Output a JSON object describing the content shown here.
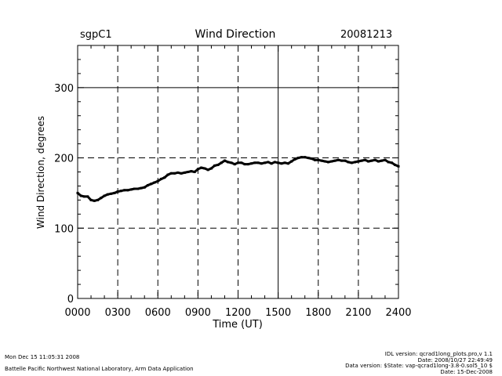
{
  "header": {
    "station": "sgpC1",
    "title": "Wind Direction",
    "date": "20081213"
  },
  "footer": {
    "left_line1": "Mon Dec 15 11:05:31 2008",
    "left_line2": "Battelle Pacific Northwest National Laboratory, Arm Data Application",
    "right_line1": "IDL version: qcrad1long_plots.pro,v 1.1",
    "right_line2": "Date: 2008/10/27 22:49:49",
    "right_line3": "Data version: $State: vap-qcrad1long-3.8-0.sol5_10 $",
    "right_line4": "Date: 15-Dec-2008"
  },
  "chart_data": {
    "type": "scatter",
    "title": "Wind Direction",
    "xlabel": "Time (UT)",
    "ylabel": "Wind Direction, degrees",
    "xlim": [
      0,
      2400
    ],
    "ylim": [
      0,
      360
    ],
    "x_ticks": [
      "0000",
      "0300",
      "0600",
      "0900",
      "1200",
      "1500",
      "1800",
      "2100",
      "2400"
    ],
    "y_ticks": [
      0,
      100,
      200,
      300
    ],
    "grid": "dashed vertical lines at each 3-hour tick, solid at 1500; dashed horizontal lines at 100, 200, 300",
    "series": [
      {
        "name": "Wind Direction",
        "color": "#000000",
        "x": [
          0,
          25,
          50,
          75,
          100,
          125,
          150,
          175,
          200,
          225,
          250,
          275,
          300,
          325,
          350,
          375,
          400,
          425,
          450,
          475,
          500,
          525,
          550,
          575,
          600,
          625,
          650,
          675,
          700,
          725,
          750,
          775,
          800,
          825,
          850,
          875,
          900,
          925,
          950,
          975,
          1000,
          1025,
          1050,
          1075,
          1100,
          1125,
          1150,
          1175,
          1200,
          1225,
          1250,
          1275,
          1300,
          1325,
          1350,
          1375,
          1400,
          1425,
          1450,
          1475,
          1500,
          1525,
          1550,
          1575,
          1600,
          1625,
          1650,
          1675,
          1700,
          1725,
          1750,
          1775,
          1800,
          1825,
          1850,
          1875,
          1900,
          1925,
          1950,
          1975,
          2000,
          2025,
          2050,
          2075,
          2100,
          2125,
          2150,
          2175,
          2200,
          2225,
          2250,
          2275,
          2300,
          2325,
          2350,
          2375,
          2400
        ],
        "values": [
          150,
          146,
          145,
          145,
          140,
          139,
          140,
          143,
          146,
          148,
          149,
          150,
          152,
          153,
          154,
          154,
          155,
          156,
          156,
          157,
          158,
          161,
          163,
          165,
          167,
          170,
          172,
          176,
          178,
          178,
          179,
          178,
          179,
          180,
          181,
          180,
          184,
          186,
          185,
          183,
          185,
          189,
          190,
          193,
          196,
          194,
          193,
          191,
          193,
          193,
          191,
          191,
          192,
          193,
          193,
          192,
          193,
          194,
          192,
          194,
          193,
          192,
          193,
          192,
          195,
          198,
          200,
          201,
          201,
          200,
          199,
          197,
          197,
          196,
          195,
          194,
          195,
          196,
          197,
          196,
          196,
          194,
          193,
          194,
          195,
          196,
          197,
          195,
          196,
          197,
          195,
          196,
          197,
          194,
          193,
          190,
          188
        ]
      }
    ]
  }
}
